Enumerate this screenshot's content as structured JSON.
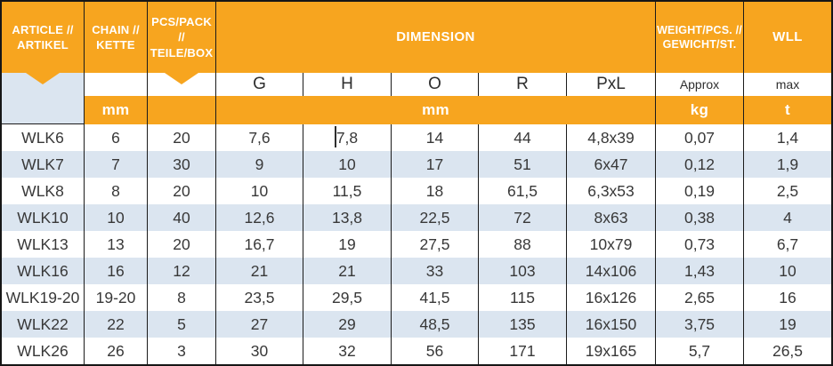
{
  "chart_data": {
    "type": "table",
    "header": {
      "article": "ARTICLE //\nARTIKEL",
      "chain": "CHAIN //\nKETTE",
      "pcs_pack": "PCS/PACK //\nTEILE/BOX",
      "dimension": "DIMENSION",
      "weight": "WEIGHT/PCS. //\nGEWICHT/ST.",
      "wll": "WLL"
    },
    "subheader": {
      "g": "G",
      "h": "H",
      "o": "O",
      "r": "R",
      "pxl": "PxL",
      "weight_note": "Approx",
      "wll_note": "max"
    },
    "units": {
      "chain": "mm",
      "dimension": "mm",
      "weight": "kg",
      "wll": "t"
    },
    "rows": [
      {
        "article": "WLK6",
        "chain": "6",
        "pcs": "20",
        "g": "7,6",
        "h": "7,8",
        "o": "14",
        "r": "44",
        "pxl": "4,8x39",
        "weight": "0,07",
        "wll": "1,4"
      },
      {
        "article": "WLK7",
        "chain": "7",
        "pcs": "30",
        "g": "9",
        "h": "10",
        "o": "17",
        "r": "51",
        "pxl": "6x47",
        "weight": "0,12",
        "wll": "1,9"
      },
      {
        "article": "WLK8",
        "chain": "8",
        "pcs": "20",
        "g": "10",
        "h": "11,5",
        "o": "18",
        "r": "61,5",
        "pxl": "6,3x53",
        "weight": "0,19",
        "wll": "2,5"
      },
      {
        "article": "WLK10",
        "chain": "10",
        "pcs": "40",
        "g": "12,6",
        "h": "13,8",
        "o": "22,5",
        "r": "72",
        "pxl": "8x63",
        "weight": "0,38",
        "wll": "4"
      },
      {
        "article": "WLK13",
        "chain": "13",
        "pcs": "20",
        "g": "16,7",
        "h": "19",
        "o": "27,5",
        "r": "88",
        "pxl": "10x79",
        "weight": "0,73",
        "wll": "6,7"
      },
      {
        "article": "WLK16",
        "chain": "16",
        "pcs": "12",
        "g": "21",
        "h": "21",
        "o": "33",
        "r": "103",
        "pxl": "14x106",
        "weight": "1,43",
        "wll": "10"
      },
      {
        "article": "WLK19-20",
        "chain": "19-20",
        "pcs": "8",
        "g": "23,5",
        "h": "29,5",
        "o": "41,5",
        "r": "115",
        "pxl": "16x126",
        "weight": "2,65",
        "wll": "16"
      },
      {
        "article": "WLK22",
        "chain": "22",
        "pcs": "5",
        "g": "27",
        "h": "29",
        "o": "48,5",
        "r": "135",
        "pxl": "16x150",
        "weight": "3,75",
        "wll": "19"
      },
      {
        "article": "WLK26",
        "chain": "26",
        "pcs": "3",
        "g": "30",
        "h": "32",
        "o": "56",
        "r": "171",
        "pxl": "19x165",
        "weight": "5,7",
        "wll": "26,5"
      }
    ]
  },
  "colors": {
    "accent_orange": "#F7A51F",
    "row_alt_blue": "#DBE5F0",
    "border_black": "#1B1B1B",
    "text_dark": "#383838"
  }
}
